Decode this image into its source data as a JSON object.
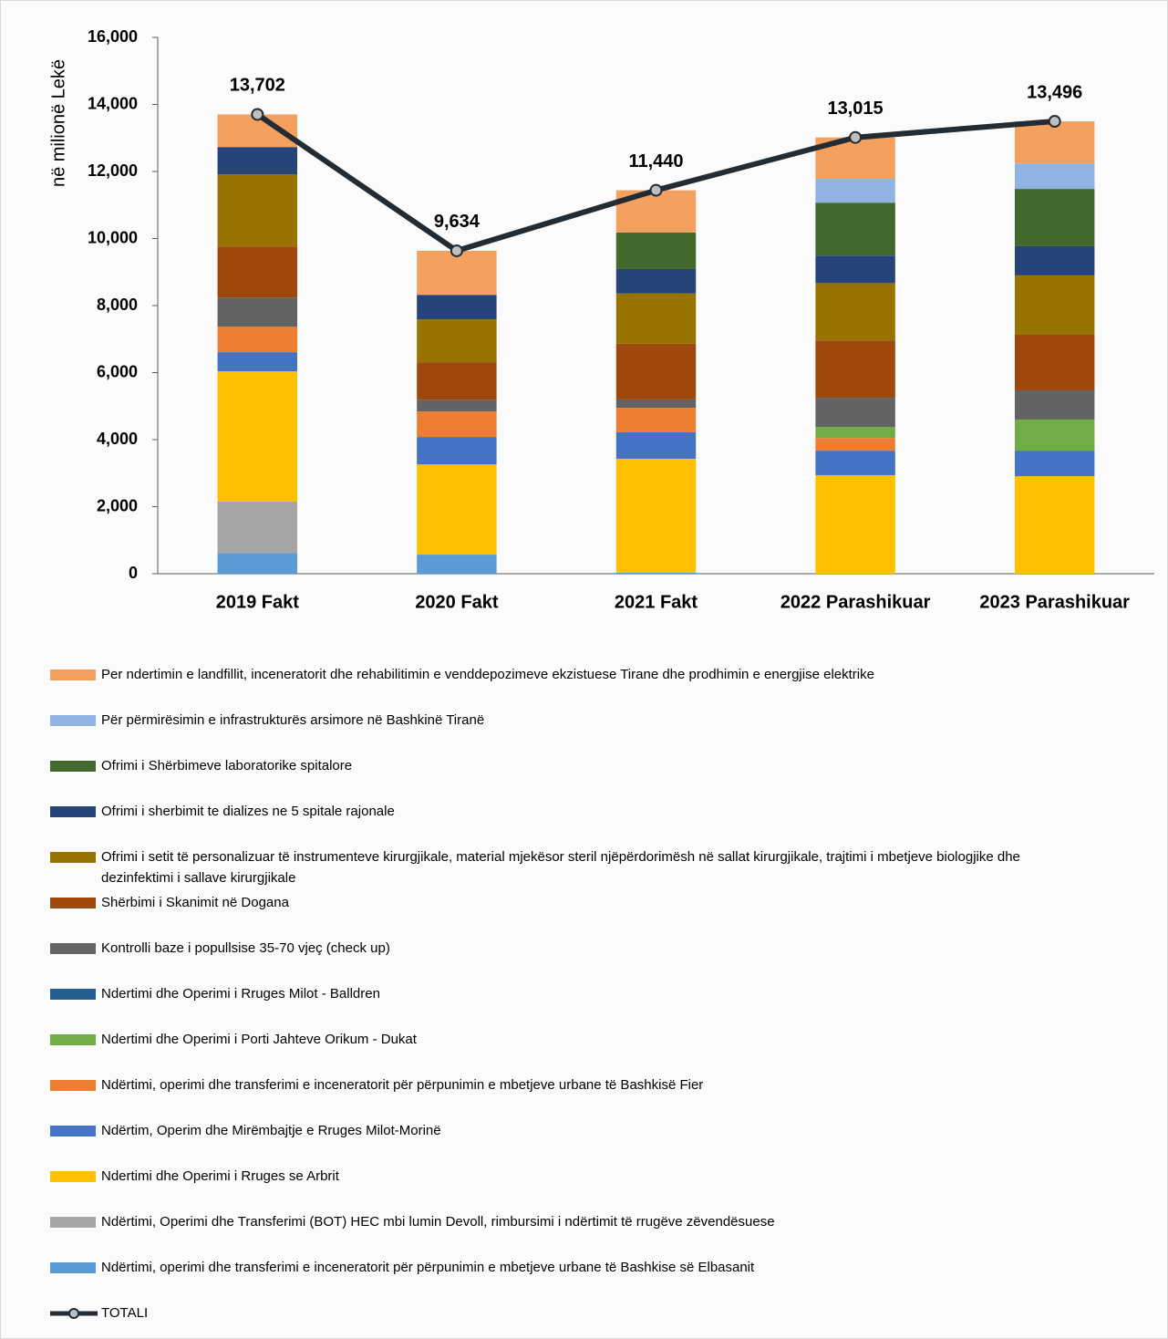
{
  "chart_data": {
    "type": "bar",
    "stacked": true,
    "y_axis_label": "në milionë Lekë",
    "categories": [
      "2019 Fakt",
      "2020 Fakt",
      "2021 Fakt",
      "2022 Parashikuar",
      "2023 Parashikuar"
    ],
    "ylim": [
      0,
      16000
    ],
    "yticks": [
      {
        "value": 0,
        "label": "0"
      },
      {
        "value": 2000,
        "label": "2,000"
      },
      {
        "value": 4000,
        "label": "4,000"
      },
      {
        "value": 6000,
        "label": "6,000"
      },
      {
        "value": 8000,
        "label": "8,000"
      },
      {
        "value": 10000,
        "label": "10,000"
      },
      {
        "value": 12000,
        "label": "12,000"
      },
      {
        "value": 14000,
        "label": "14,000"
      },
      {
        "value": 16000,
        "label": "16,000"
      }
    ],
    "series": [
      {
        "name": "Ndërtimi, operimi dhe transferimi e inceneratorit për përpunimin e mbetjeve urbane të Bashkise së Elbasanit",
        "color": "#5b9bd5",
        "values": [
          620,
          570,
          30,
          0,
          0
        ]
      },
      {
        "name": "Ndërtimi, Operimi dhe Transferimi (BOT) HEC mbi lumin Devoll, rimbursimi i ndërtimit të rrugëve zëvendësuese",
        "color": "#a5a5a5",
        "values": [
          1530,
          0,
          0,
          0,
          0
        ]
      },
      {
        "name": "Ndertimi dhe Operimi i Rruges se Arbrit",
        "color": "#ffc000",
        "values": [
          3890,
          2690,
          3400,
          2940,
          2910
        ]
      },
      {
        "name": "Ndërtim, Operim dhe Mirëmbajtje e Rruges Milot-Morinë",
        "color": "#4472c4",
        "values": [
          570,
          820,
          790,
          730,
          760
        ]
      },
      {
        "name": "Ndërtimi, operimi dhe transferimi e inceneratorit për përpunimin e mbetjeve urbane të Bashkisë Fier",
        "color": "#ed7d31",
        "values": [
          760,
          760,
          730,
          380,
          0
        ]
      },
      {
        "name": "Ndertimi dhe Operimi i Porti Jahteve Orikum - Dukat",
        "color": "#70ad47",
        "values": [
          0,
          0,
          0,
          330,
          930
        ]
      },
      {
        "name": "Ndertimi dhe Operimi i Rruges Milot - Balldren",
        "color": "#255e91",
        "values": [
          0,
          0,
          0,
          0,
          0
        ]
      },
      {
        "name": "Kontrolli baze i popullsise 35-70 vjeç (check up)",
        "color": "#636363",
        "values": [
          870,
          350,
          250,
          870,
          870
        ]
      },
      {
        "name": "Shërbimi i Skanimit në Dogana",
        "color": "#9e480e",
        "values": [
          1520,
          1120,
          1660,
          1710,
          1660
        ]
      },
      {
        "name": "Ofrimi i setit të personalizuar të instrumenteve kirurgjikale, material mjekësor steril njëpërdorimësh në sallat kirurgjikale, trajtimi i mbetjeve biologjike dhe dezinfektimi i sallave kirurgjikale",
        "color": "#997300",
        "values": [
          2150,
          1280,
          1500,
          1710,
          1770
        ]
      },
      {
        "name": "Ofrimi i sherbimit te dializes ne 5 spitale rajonale",
        "color": "#264478",
        "values": [
          820,
          730,
          730,
          820,
          870
        ]
      },
      {
        "name": "Ofrimi i Shërbimeve laboratorike spitalore",
        "color": "#43682b",
        "values": [
          0,
          0,
          1090,
          1580,
          1710
        ]
      },
      {
        "name": "Për përmirësimin e infrastrukturës arsimore në Bashkinë Tiranë",
        "color": "#8fb4e3",
        "values": [
          0,
          0,
          0,
          710,
          760
        ]
      },
      {
        "name": "Per ndertimin e landfillit, inceneratorit dhe rehabilitimin e venddepozimeve ekzistuese Tirane dhe prodhimin e energjise elektrike",
        "color": "#f4a05f",
        "values": [
          972,
          1314,
          1260,
          1235,
          1256
        ]
      }
    ],
    "total": {
      "name": "TOTALI",
      "type": "line",
      "color": "#232b33",
      "marker_color": "#bfbfbf",
      "values": [
        13702,
        9634,
        11440,
        13015,
        13496
      ],
      "value_labels": [
        "13,702",
        "9,634",
        "11,440",
        "13,015",
        "13,496"
      ]
    }
  }
}
